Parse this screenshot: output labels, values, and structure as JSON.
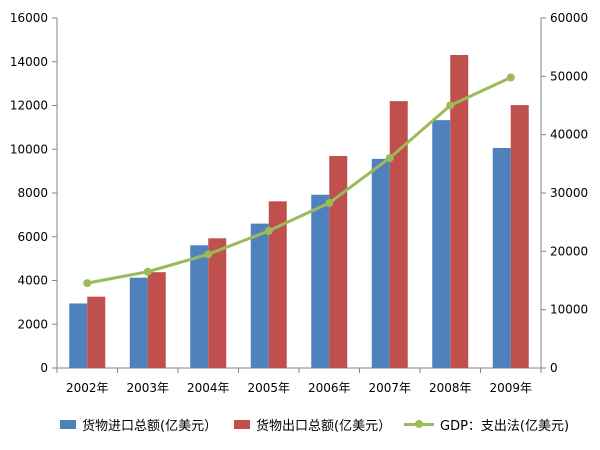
{
  "chart_data": {
    "type": "bar",
    "title": "",
    "categories": [
      "2002年",
      "2003年",
      "2004年",
      "2005年",
      "2006年",
      "2007年",
      "2008年",
      "2009年"
    ],
    "series": [
      {
        "name": "货物进口总额(亿美元）",
        "kind": "bar",
        "axis": "left",
        "color": "#4F81BD",
        "values": [
          2950,
          4130,
          5610,
          6600,
          7920,
          9560,
          11330,
          10060
        ]
      },
      {
        "name": "货物出口总额(亿美元）",
        "kind": "bar",
        "axis": "left",
        "color": "#C0504D",
        "values": [
          3260,
          4380,
          5930,
          7620,
          9690,
          12200,
          14310,
          12020
        ]
      },
      {
        "name": "GDP：支出法(亿美元)",
        "kind": "line",
        "axis": "right",
        "color": "#9BBB59",
        "values": [
          14550,
          16500,
          19500,
          23500,
          28300,
          36000,
          45000,
          49800
        ]
      }
    ],
    "left_axis": {
      "ylim": [
        0,
        16000
      ],
      "ticks": [
        "0",
        "2000",
        "4000",
        "6000",
        "8000",
        "10000",
        "12000",
        "14000",
        "16000"
      ]
    },
    "right_axis": {
      "ylim": [
        0,
        60000
      ],
      "ticks": [
        "0",
        "10000",
        "20000",
        "30000",
        "40000",
        "50000",
        "60000"
      ]
    },
    "grid": false,
    "legend_position": "bottom"
  }
}
